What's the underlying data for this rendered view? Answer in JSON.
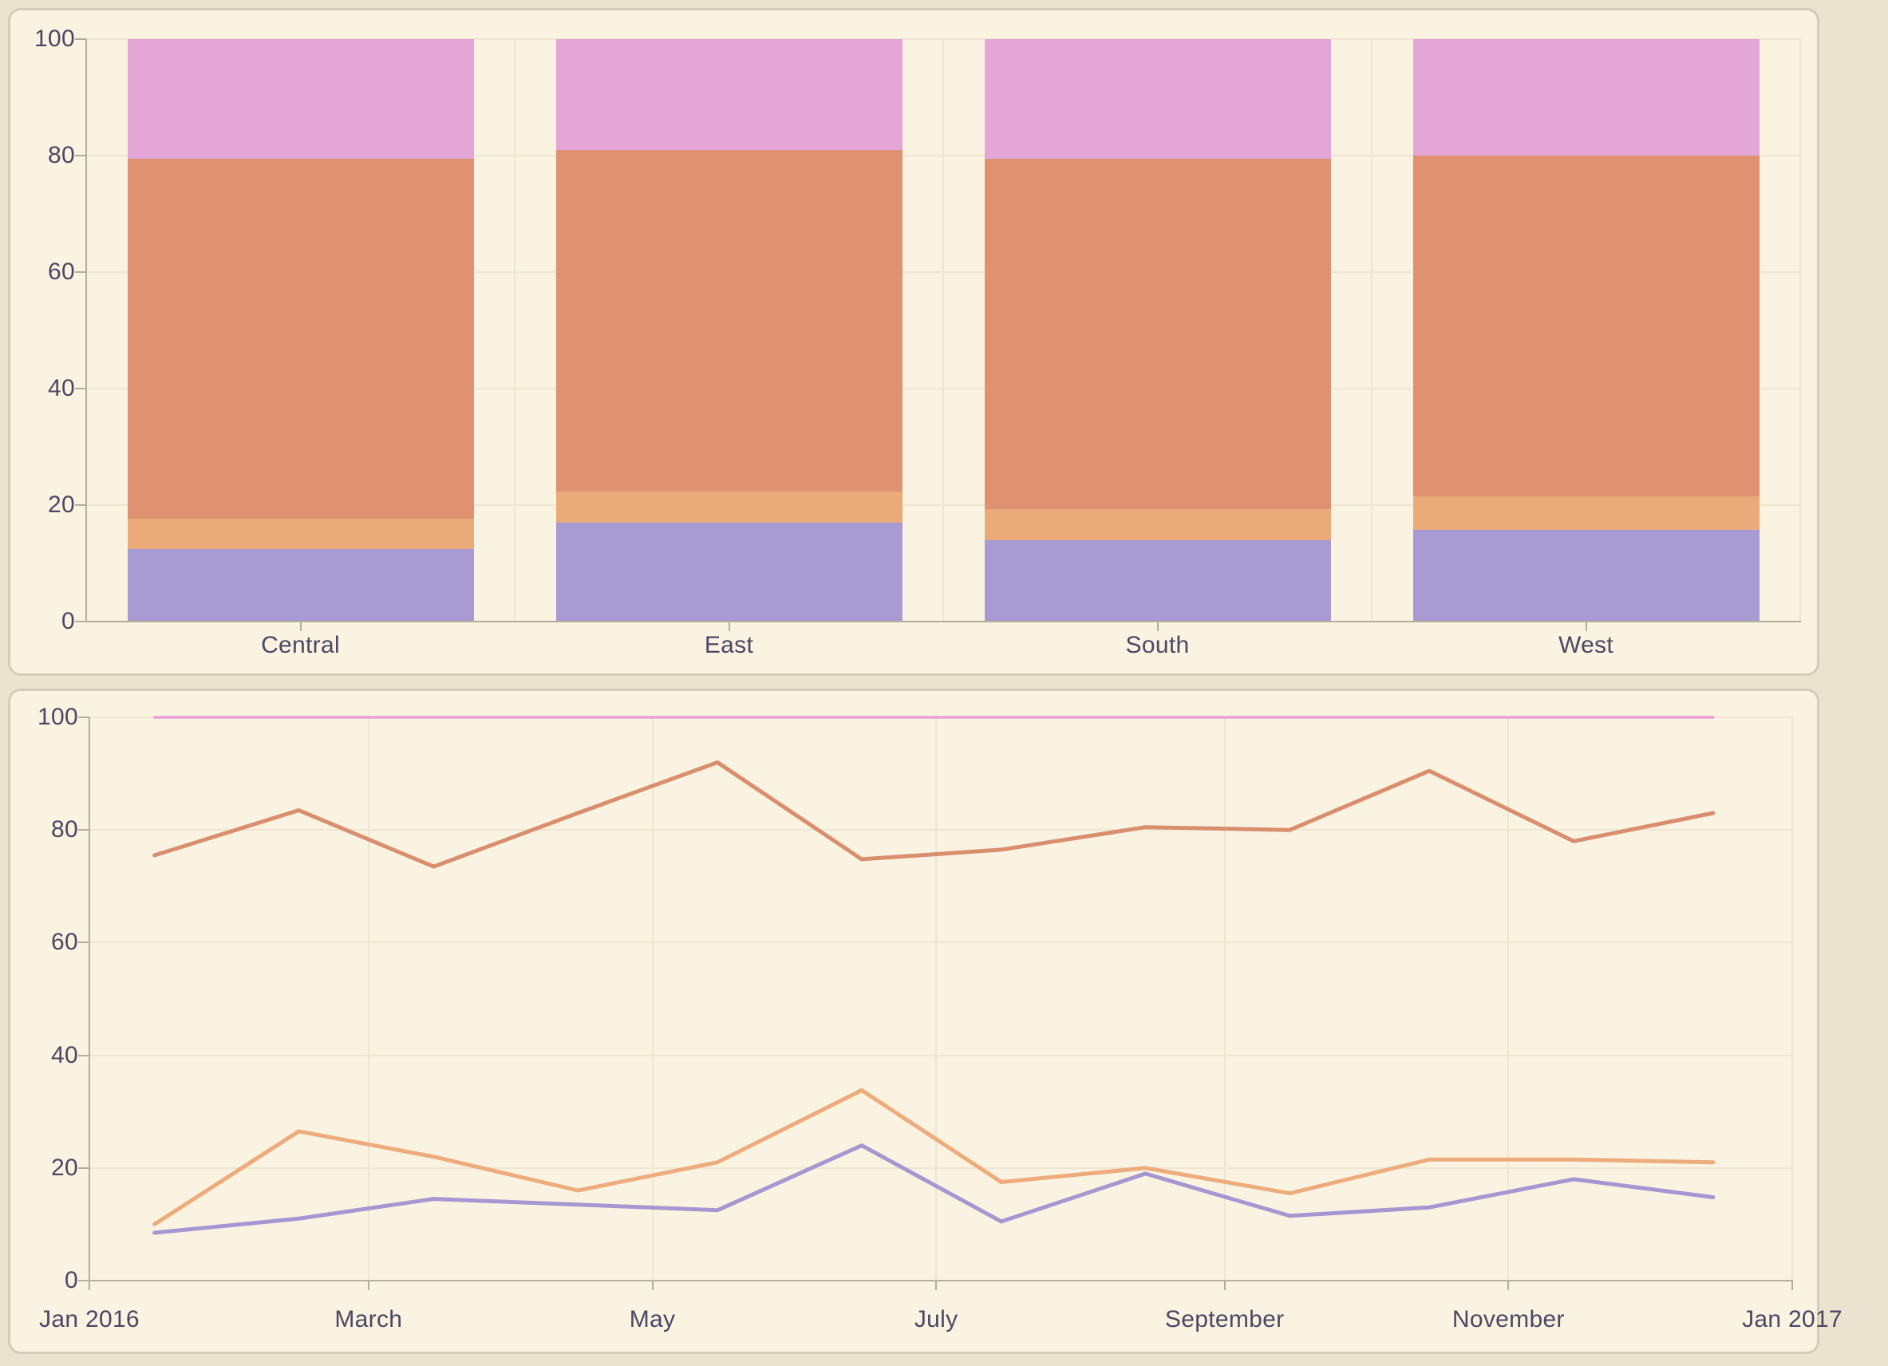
{
  "palette": {
    "page_background": "#ebe3cf",
    "panel_background": "#faf3e1",
    "panel_border": "#d5cdb6",
    "gridline": "#eee6d1",
    "axis": "#b5ae9a",
    "tick_text": "#4c4764"
  },
  "chart_data": [
    {
      "type": "bar",
      "subtype": "stacked-percent",
      "title": "",
      "xlabel": "",
      "ylabel": "",
      "categories": [
        "Central",
        "East",
        "South",
        "West"
      ],
      "series": [
        {
          "name": "purple",
          "color": "#a89bd3",
          "values": [
            12.5,
            17.0,
            14.0,
            15.8
          ]
        },
        {
          "name": "peach",
          "color": "#ebaa7a",
          "values": [
            5.2,
            5.3,
            5.3,
            5.7
          ]
        },
        {
          "name": "salmon",
          "color": "#de9271",
          "values": [
            61.8,
            58.7,
            60.2,
            58.5
          ]
        },
        {
          "name": "pink",
          "color": "#e3a6d6",
          "values": [
            20.5,
            19.0,
            20.5,
            20.0
          ]
        }
      ],
      "y_ticks": [
        0,
        20,
        40,
        60,
        80,
        100
      ],
      "ylim": [
        0,
        100
      ],
      "grid": true,
      "legend": null
    },
    {
      "type": "line",
      "title": "",
      "xlabel": "",
      "ylabel": "",
      "x_tick_labels": [
        "Jan 2016",
        "March",
        "May",
        "July",
        "September",
        "November",
        "Jan 2017"
      ],
      "x_tick_days": [
        0,
        60,
        121,
        182,
        244,
        305,
        366
      ],
      "point_days": [
        14,
        45,
        74,
        105,
        135,
        166,
        196,
        227,
        258,
        288,
        319,
        349
      ],
      "series": [
        {
          "name": "pink",
          "color": "#ee9fd8",
          "stroke_width": 3.5,
          "values": [
            100,
            100,
            100,
            100,
            100,
            100,
            100,
            100,
            100,
            100,
            100,
            100
          ]
        },
        {
          "name": "salmon",
          "color": "#d98e6e",
          "stroke_width": 5,
          "values": [
            75.5,
            83.5,
            73.5,
            83,
            92,
            74.8,
            76.5,
            80.5,
            80,
            90.5,
            78,
            83
          ]
        },
        {
          "name": "peach",
          "color": "#eeab7c",
          "stroke_width": 5,
          "values": [
            10,
            26.5,
            22,
            16,
            21,
            33.8,
            17.5,
            20,
            15.5,
            21.5,
            21.5,
            21
          ]
        },
        {
          "name": "purple",
          "color": "#a597d2",
          "stroke_width": 5,
          "values": [
            8.5,
            11,
            14.5,
            13.5,
            12.5,
            24,
            10.5,
            19,
            11.5,
            13,
            18,
            14.8
          ]
        }
      ],
      "y_ticks": [
        0,
        20,
        40,
        60,
        80,
        100
      ],
      "ylim": [
        0,
        100
      ],
      "xlim_days": [
        0,
        366
      ],
      "grid": true,
      "legend": null
    }
  ]
}
